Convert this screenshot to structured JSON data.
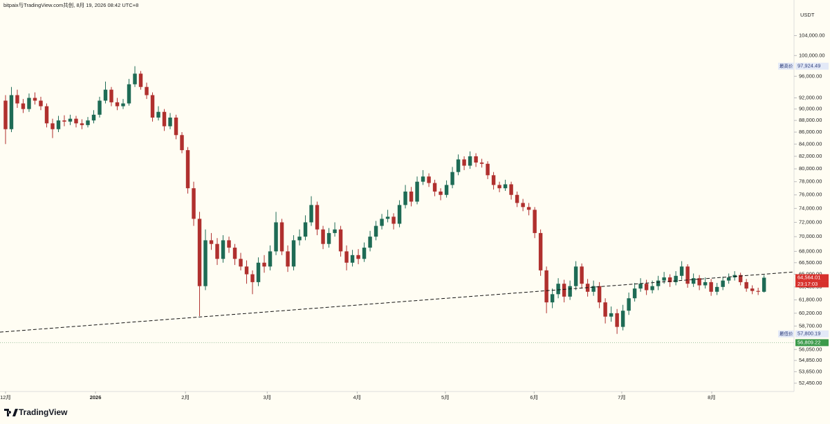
{
  "header": "bitpaix与TradingView.com共创, 8月 19, 2026 08:42 UTC+8",
  "currency": "USDT",
  "watermark": "TradingView",
  "chart_data": {
    "type": "candlestick",
    "log_scale": true,
    "up_color": "#1e6b55",
    "down_color": "#b0302e",
    "xlim": [
      -0.94,
      134.1
    ],
    "ylim": [
      51600,
      111560
    ],
    "xticks": [
      {
        "value": 0,
        "label": "12月"
      },
      {
        "value": 15.3,
        "label": "2026"
      },
      {
        "value": 30.6,
        "label": "2月"
      },
      {
        "value": 44.5,
        "label": "3月"
      },
      {
        "value": 59.8,
        "label": "4月"
      },
      {
        "value": 74.8,
        "label": "5月"
      },
      {
        "value": 89.9,
        "label": "6月"
      },
      {
        "value": 104.8,
        "label": "7月"
      },
      {
        "value": 120.1,
        "label": "8月"
      }
    ],
    "yticks": [
      {
        "value": 104000,
        "label": "104,000.00"
      },
      {
        "value": 100000,
        "label": "100,000.00"
      },
      {
        "value": 96000,
        "label": "96,000.00"
      },
      {
        "value": 92000,
        "label": "92,000.00"
      },
      {
        "value": 90000,
        "label": "90,000.00"
      },
      {
        "value": 88000,
        "label": "88,000.00"
      },
      {
        "value": 86000,
        "label": "86,000.00"
      },
      {
        "value": 84000,
        "label": "84,000.00"
      },
      {
        "value": 82000,
        "label": "82,000.00"
      },
      {
        "value": 80000,
        "label": "80,000.00"
      },
      {
        "value": 78000,
        "label": "78,000.00"
      },
      {
        "value": 76000,
        "label": "76,000.00"
      },
      {
        "value": 74000,
        "label": "74,000.00"
      },
      {
        "value": 72000,
        "label": "72,000.00"
      },
      {
        "value": 70000,
        "label": "70,000.00"
      },
      {
        "value": 68000,
        "label": "68,000.00"
      },
      {
        "value": 66500,
        "label": "66,500.00"
      },
      {
        "value": 65000,
        "label": "65,000.00"
      },
      {
        "value": 63400,
        "label": "63,400.00"
      },
      {
        "value": 61800,
        "label": "61,800.00"
      },
      {
        "value": 60200,
        "label": "60,200.00"
      },
      {
        "value": 58700,
        "label": "58,700.00"
      },
      {
        "value": 56050,
        "label": "56,050.00"
      },
      {
        "value": 54850,
        "label": "54,850.00"
      },
      {
        "value": 53650,
        "label": "53,650.00"
      },
      {
        "value": 52450,
        "label": "52,450.00"
      }
    ],
    "open": [
      91500,
      86500,
      92500,
      91000,
      90000,
      92000,
      91500,
      90500,
      87500,
      86500,
      88000,
      87800,
      88300,
      87500,
      87200,
      88000,
      89000,
      91500,
      93500,
      91200,
      90500,
      91000,
      94500,
      96500,
      94000,
      92500,
      88500,
      89500,
      87000,
      88500,
      85500,
      83000,
      77000,
      72500,
      63500,
      69500,
      69000,
      67000,
      69500,
      68500,
      67000,
      66000,
      65000,
      64000,
      66500,
      66000,
      68000,
      72000,
      68000,
      66000,
      69500,
      70000,
      72000,
      74500,
      71000,
      69000,
      70500,
      71000,
      68000,
      66500,
      67500,
      67000,
      68500,
      70000,
      71500,
      72500,
      72800,
      71800,
      74500,
      76500,
      75000,
      78000,
      78800,
      77800,
      76500,
      76000,
      77500,
      79500,
      81500,
      80500,
      82000,
      81000,
      80800,
      79000,
      77500,
      77000,
      77600,
      76000,
      74800,
      74200,
      73800,
      70500,
      65500,
      61500,
      62500,
      63800,
      62200,
      63500,
      66000,
      63800,
      62800,
      63500,
      61500,
      59800,
      60200,
      58600,
      60500,
      62000,
      63200,
      63800,
      63000,
      63500,
      64200,
      64600,
      64000,
      64800,
      66000,
      63800,
      64500,
      63600,
      64000,
      62800,
      63400,
      64200,
      64600,
      64900,
      64000,
      63200,
      62900,
      62800
    ],
    "high": [
      92500,
      94000,
      93500,
      91800,
      92800,
      93000,
      92200,
      91000,
      88300,
      88800,
      88900,
      89000,
      88800,
      88200,
      88600,
      89800,
      92200,
      95000,
      94000,
      92000,
      91800,
      95500,
      97924.49,
      97000,
      94800,
      93000,
      90500,
      90000,
      89300,
      89000,
      86000,
      83500,
      78000,
      73500,
      71000,
      70500,
      69800,
      70200,
      70000,
      69000,
      67800,
      66800,
      65500,
      67200,
      67500,
      68800,
      73500,
      72500,
      68800,
      70200,
      71000,
      73000,
      75800,
      75000,
      71500,
      71200,
      72000,
      71500,
      68800,
      68200,
      68300,
      69200,
      70800,
      72200,
      73200,
      73800,
      73300,
      75200,
      77500,
      77200,
      78800,
      79800,
      79300,
      78300,
      77000,
      78200,
      80300,
      82300,
      82000,
      82800,
      82500,
      81600,
      81200,
      79500,
      78000,
      78300,
      78000,
      76500,
      75400,
      74800,
      74200,
      71000,
      66000,
      63200,
      64500,
      64300,
      64200,
      66700,
      66400,
      64400,
      64200,
      64000,
      62000,
      61000,
      60700,
      61200,
      62700,
      63900,
      64500,
      64300,
      64200,
      64800,
      65300,
      65000,
      65400,
      66700,
      66300,
      65100,
      64900,
      64600,
      64400,
      63900,
      64700,
      65100,
      65400,
      65200,
      64400,
      63600,
      63300,
      64900
    ],
    "low": [
      84000,
      86000,
      90200,
      89300,
      89500,
      90800,
      89800,
      86800,
      85000,
      86000,
      87000,
      87200,
      86800,
      86500,
      86800,
      87500,
      88500,
      91000,
      90500,
      89800,
      90000,
      90600,
      94000,
      93500,
      91800,
      87800,
      88000,
      86200,
      86500,
      84800,
      82500,
      76200,
      71500,
      59860,
      63000,
      68200,
      66200,
      66500,
      67800,
      66200,
      65500,
      63800,
      62500,
      63500,
      65200,
      65500,
      67500,
      67500,
      65300,
      65500,
      68800,
      69500,
      71500,
      70200,
      68300,
      68500,
      70000,
      67300,
      65500,
      66000,
      66300,
      66600,
      68000,
      69500,
      71000,
      72000,
      71000,
      71300,
      74000,
      74300,
      74600,
      77500,
      77200,
      75800,
      75200,
      75600,
      77000,
      79000,
      79800,
      80000,
      80300,
      80200,
      78400,
      76800,
      76400,
      76600,
      75300,
      74200,
      73600,
      73000,
      69800,
      64800,
      60200,
      60800,
      62000,
      61500,
      61800,
      63000,
      63200,
      62200,
      62300,
      60800,
      59000,
      59200,
      57800.19,
      58200,
      60000,
      61600,
      62800,
      62400,
      62600,
      63000,
      63800,
      63400,
      63600,
      64300,
      63300,
      63400,
      63000,
      63200,
      62300,
      62400,
      63000,
      63800,
      64200,
      63600,
      62800,
      62500,
      62400,
      62700
    ],
    "close": [
      86500,
      92500,
      91000,
      90000,
      92000,
      91500,
      90500,
      87500,
      86500,
      88000,
      87800,
      88300,
      87500,
      87200,
      88000,
      89000,
      91500,
      93500,
      91200,
      90500,
      91000,
      94500,
      96500,
      94000,
      92500,
      88500,
      89500,
      87000,
      88500,
      85500,
      83000,
      77000,
      72500,
      63500,
      69500,
      69000,
      67000,
      69500,
      68500,
      67000,
      66000,
      65000,
      64000,
      66500,
      66000,
      68000,
      72000,
      68000,
      66000,
      69500,
      70000,
      72000,
      74500,
      71000,
      69000,
      70500,
      71000,
      68000,
      66500,
      67500,
      67000,
      68500,
      70000,
      71500,
      72500,
      72800,
      71800,
      74500,
      76500,
      75000,
      78000,
      78800,
      77800,
      76500,
      76000,
      77500,
      79500,
      81500,
      80500,
      82000,
      81000,
      80800,
      79000,
      77500,
      77000,
      77600,
      76000,
      74800,
      74200,
      73800,
      70500,
      65500,
      61500,
      62500,
      63800,
      62200,
      63500,
      66000,
      63800,
      62800,
      63500,
      61500,
      59800,
      60200,
      58600,
      60500,
      62000,
      63200,
      63800,
      63000,
      63500,
      64200,
      64600,
      64000,
      64800,
      66000,
      63800,
      64500,
      63600,
      64000,
      62800,
      63400,
      64200,
      64600,
      64900,
      64000,
      63200,
      62900,
      62800,
      64564.01
    ],
    "trend_line": {
      "x": [
        -0.94,
        134.1
      ],
      "y": [
        58000,
        65300
      ]
    },
    "high_marker": {
      "label": "最高价",
      "price": {
        "value": 97924.49,
        "label": "97,924.49"
      }
    },
    "low_marker": {
      "label": "最低价",
      "price": {
        "value": 57800.19,
        "label": "57,800.19"
      }
    },
    "last_price": {
      "value": 64564.01,
      "label": "64,564.01"
    },
    "countdown": "23:17:03",
    "line_price": {
      "value": 56809.22,
      "label": "56,809.22"
    }
  }
}
